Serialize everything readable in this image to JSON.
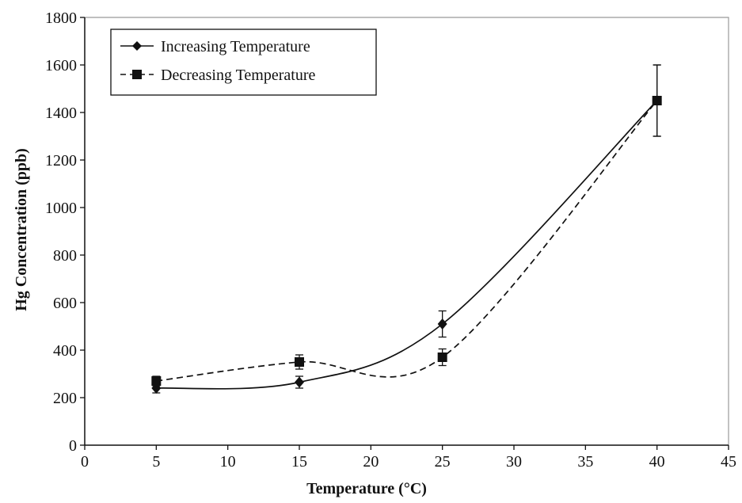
{
  "chart_data": {
    "type": "line",
    "title": "",
    "xlabel": "Temperature (°C)",
    "ylabel": "Hg Concentration (ppb)",
    "xlim": [
      0,
      45
    ],
    "ylim": [
      0,
      1800
    ],
    "x_ticks": [
      0,
      5,
      10,
      15,
      20,
      25,
      30,
      35,
      40,
      45
    ],
    "y_ticks": [
      0,
      200,
      400,
      600,
      800,
      1000,
      1200,
      1400,
      1600,
      1800
    ],
    "grid": false,
    "legend_position": "top-left",
    "series": [
      {
        "name": "Increasing Temperature",
        "marker": "diamond",
        "line_style": "solid",
        "smoothed": true,
        "x": [
          5,
          15,
          25,
          40
        ],
        "y": [
          240,
          265,
          510,
          1450
        ],
        "error": [
          20,
          25,
          55,
          150
        ]
      },
      {
        "name": "Decreasing Temperature",
        "marker": "square",
        "line_style": "dashed",
        "smoothed": true,
        "x": [
          5,
          15,
          25,
          40
        ],
        "y": [
          270,
          350,
          370,
          1450
        ],
        "error": [
          20,
          30,
          35,
          150
        ]
      }
    ]
  }
}
